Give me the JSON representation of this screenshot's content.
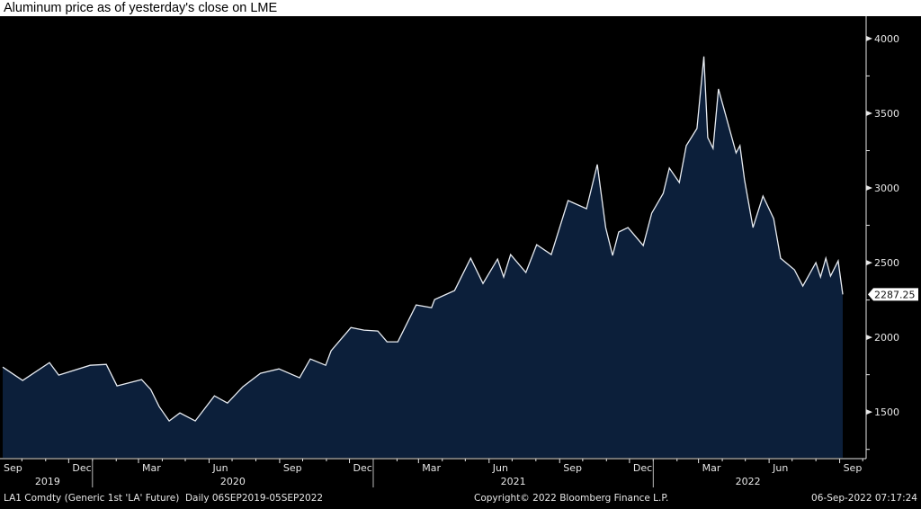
{
  "chart_data": {
    "type": "area",
    "title": "Aluminum price as of yesterday's close on LME",
    "xlabel": "",
    "ylabel": "",
    "ylim": [
      1200,
      4150
    ],
    "xlim": [
      "2019-09-06",
      "2022-09-05"
    ],
    "grid": false,
    "y_ticks": [
      1500,
      2000,
      2500,
      3000,
      3500,
      4000
    ],
    "y_tick_labels": [
      "1500",
      "2000",
      "2500",
      "3000",
      "3500",
      "4000"
    ],
    "x_month_ticks": [
      {
        "date": "2019-09-01",
        "label": "Sep"
      },
      {
        "date": "2019-12-01",
        "label": "Dec"
      },
      {
        "date": "2020-03-01",
        "label": "Mar"
      },
      {
        "date": "2020-06-01",
        "label": "Jun"
      },
      {
        "date": "2020-09-01",
        "label": "Sep"
      },
      {
        "date": "2020-12-01",
        "label": "Dec"
      },
      {
        "date": "2021-03-01",
        "label": "Mar"
      },
      {
        "date": "2021-06-01",
        "label": "Jun"
      },
      {
        "date": "2021-09-01",
        "label": "Sep"
      },
      {
        "date": "2021-12-01",
        "label": "Dec"
      },
      {
        "date": "2022-03-01",
        "label": "Mar"
      },
      {
        "date": "2022-06-01",
        "label": "Jun"
      },
      {
        "date": "2022-09-01",
        "label": "Sep"
      }
    ],
    "x_year_labels": [
      {
        "label": "2019",
        "start": "2019-09-06",
        "end": "2020-01-01"
      },
      {
        "label": "2020",
        "start": "2020-01-01",
        "end": "2021-01-01"
      },
      {
        "label": "2021",
        "start": "2021-01-01",
        "end": "2022-01-01"
      },
      {
        "label": "2022",
        "start": "2022-01-01",
        "end": "2022-09-05"
      }
    ],
    "last_value_label": "2287.25",
    "last_value": 2287.25,
    "series": [
      {
        "name": "LA1 Comdty",
        "color": "#e8ecf2",
        "fill": "#0c1f3a",
        "x": [
          "2019-09-06",
          "2019-10-02",
          "2019-11-06",
          "2019-11-18",
          "2019-12-29",
          "2020-01-19",
          "2020-02-02",
          "2020-03-05",
          "2020-03-17",
          "2020-03-28",
          "2020-04-10",
          "2020-04-24",
          "2020-05-14",
          "2020-06-08",
          "2020-06-25",
          "2020-07-15",
          "2020-08-07",
          "2020-08-31",
          "2020-09-27",
          "2020-10-11",
          "2020-10-31",
          "2020-11-07",
          "2020-12-03",
          "2020-12-20",
          "2021-01-07",
          "2021-01-19",
          "2021-02-02",
          "2021-02-26",
          "2021-03-18",
          "2021-03-22",
          "2021-04-17",
          "2021-05-08",
          "2021-05-24",
          "2021-06-12",
          "2021-06-20",
          "2021-06-29",
          "2021-07-19",
          "2021-08-02",
          "2021-08-21",
          "2021-09-12",
          "2021-10-06",
          "2021-10-20",
          "2021-10-31",
          "2021-11-09",
          "2021-11-17",
          "2021-11-29",
          "2021-12-19",
          "2021-12-30",
          "2022-01-14",
          "2022-01-22",
          "2022-02-04",
          "2022-02-13",
          "2022-02-27",
          "2022-03-08",
          "2022-03-13",
          "2022-03-20",
          "2022-03-27",
          "2022-04-07",
          "2022-04-19",
          "2022-04-24",
          "2022-04-30",
          "2022-05-11",
          "2022-05-24",
          "2022-06-07",
          "2022-06-16",
          "2022-07-04",
          "2022-07-15",
          "2022-08-01",
          "2022-08-07",
          "2022-08-14",
          "2022-08-20",
          "2022-08-30",
          "2022-09-05"
        ],
        "values": [
          1801,
          1711,
          1831,
          1747,
          1813,
          1819,
          1675,
          1717,
          1651,
          1536,
          1440,
          1494,
          1440,
          1608,
          1560,
          1669,
          1759,
          1789,
          1729,
          1855,
          1813,
          1910,
          2066,
          2048,
          2042,
          1970,
          1970,
          2217,
          2199,
          2253,
          2313,
          2530,
          2361,
          2524,
          2404,
          2554,
          2434,
          2620,
          2554,
          2916,
          2861,
          3157,
          2735,
          2548,
          2705,
          2735,
          2614,
          2831,
          2964,
          3133,
          3036,
          3283,
          3398,
          3880,
          3337,
          3265,
          3663,
          3458,
          3235,
          3283,
          3054,
          2735,
          2946,
          2795,
          2530,
          2452,
          2343,
          2500,
          2404,
          2530,
          2410,
          2512,
          2287.25
        ]
      }
    ]
  },
  "footer": {
    "ticker": "LA1 Comdty (Generic 1st 'LA' Future)  Daily 06SEP2019-05SEP2022",
    "copyright": "Copyright© 2022 Bloomberg Finance L.P.",
    "timestamp": "06-Sep-2022 07:17:24"
  }
}
